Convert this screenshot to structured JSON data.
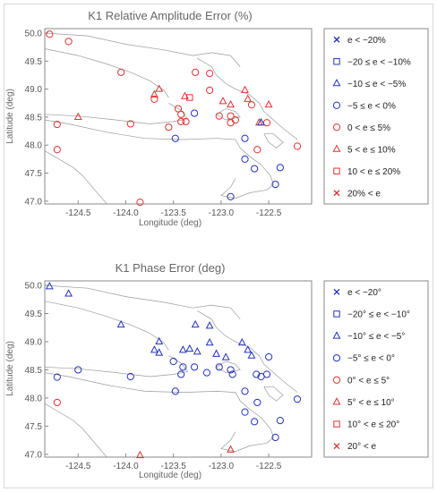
{
  "chart_data": [
    {
      "type": "scatter",
      "title": "K1 Relative Amplitude Error (%)",
      "xlabel": "Longitude (deg)",
      "ylabel": "Latitude (deg)",
      "xlim": [
        -124.85,
        -122.05
      ],
      "ylim": [
        46.95,
        50.08
      ],
      "xticks": [
        -124.5,
        -124.0,
        -123.5,
        -123.0,
        -122.5
      ],
      "yticks": [
        47.0,
        47.5,
        48.0,
        48.5,
        49.0,
        49.5,
        50.0
      ],
      "grid": false,
      "legend_position": "right",
      "legend": [
        {
          "label": "e < −20%",
          "marker": "x",
          "color": "#2233bb"
        },
        {
          "label": "−20 ≤ e < −10%",
          "marker": "square",
          "color": "#2233bb"
        },
        {
          "label": "−10 ≤ e < −5%",
          "marker": "triangle",
          "color": "#2233bb"
        },
        {
          "label": "−5 ≤ e < 0%",
          "marker": "circle",
          "color": "#2233bb"
        },
        {
          "label": "0 < e ≤ 5%",
          "marker": "circle",
          "color": "#dd3333"
        },
        {
          "label": "5 < e ≤ 10%",
          "marker": "triangle",
          "color": "#dd3333"
        },
        {
          "label": "10 < e ≤ 20%",
          "marker": "square",
          "color": "#dd3333"
        },
        {
          "label": "20% < e",
          "marker": "x",
          "color": "#dd3333"
        }
      ],
      "points": [
        {
          "x": -124.8,
          "y": 49.98,
          "m": "circle",
          "c": "red"
        },
        {
          "x": -124.6,
          "y": 49.85,
          "m": "circle",
          "c": "red"
        },
        {
          "x": -124.05,
          "y": 49.3,
          "m": "circle",
          "c": "red"
        },
        {
          "x": -123.27,
          "y": 49.3,
          "m": "circle",
          "c": "red"
        },
        {
          "x": -123.12,
          "y": 49.28,
          "m": "circle",
          "c": "red"
        },
        {
          "x": -123.65,
          "y": 49.0,
          "m": "triangle",
          "c": "red"
        },
        {
          "x": -123.7,
          "y": 48.9,
          "m": "triangle",
          "c": "red"
        },
        {
          "x": -123.7,
          "y": 48.82,
          "m": "circle",
          "c": "red"
        },
        {
          "x": -123.38,
          "y": 48.87,
          "m": "triangle",
          "c": "red"
        },
        {
          "x": -123.33,
          "y": 48.85,
          "m": "square",
          "c": "red"
        },
        {
          "x": -123.12,
          "y": 48.98,
          "m": "circle",
          "c": "red"
        },
        {
          "x": -122.98,
          "y": 48.78,
          "m": "triangle",
          "c": "red"
        },
        {
          "x": -122.9,
          "y": 48.72,
          "m": "triangle",
          "c": "red"
        },
        {
          "x": -122.75,
          "y": 48.98,
          "m": "triangle",
          "c": "red"
        },
        {
          "x": -122.72,
          "y": 48.82,
          "m": "triangle",
          "c": "red"
        },
        {
          "x": -122.68,
          "y": 48.72,
          "m": "circle",
          "c": "red"
        },
        {
          "x": -122.5,
          "y": 48.72,
          "m": "triangle",
          "c": "red"
        },
        {
          "x": -124.5,
          "y": 48.5,
          "m": "triangle",
          "c": "red"
        },
        {
          "x": -124.72,
          "y": 48.37,
          "m": "circle",
          "c": "red"
        },
        {
          "x": -123.95,
          "y": 48.38,
          "m": "circle",
          "c": "red"
        },
        {
          "x": -123.55,
          "y": 48.32,
          "m": "circle",
          "c": "red"
        },
        {
          "x": -123.42,
          "y": 48.42,
          "m": "circle",
          "c": "red"
        },
        {
          "x": -123.37,
          "y": 48.42,
          "m": "circle",
          "c": "red"
        },
        {
          "x": -123.42,
          "y": 48.55,
          "m": "circle",
          "c": "red"
        },
        {
          "x": -123.45,
          "y": 48.65,
          "m": "circle",
          "c": "red"
        },
        {
          "x": -123.02,
          "y": 48.52,
          "m": "circle",
          "c": "red"
        },
        {
          "x": -122.9,
          "y": 48.52,
          "m": "circle",
          "c": "red"
        },
        {
          "x": -122.85,
          "y": 48.45,
          "m": "circle",
          "c": "red"
        },
        {
          "x": -122.9,
          "y": 48.4,
          "m": "circle",
          "c": "red"
        },
        {
          "x": -122.6,
          "y": 48.4,
          "m": "triangle",
          "c": "red"
        },
        {
          "x": -122.52,
          "y": 48.4,
          "m": "circle",
          "c": "red"
        },
        {
          "x": -122.62,
          "y": 47.92,
          "m": "circle",
          "c": "red"
        },
        {
          "x": -122.2,
          "y": 47.98,
          "m": "circle",
          "c": "red"
        },
        {
          "x": -124.72,
          "y": 47.92,
          "m": "circle",
          "c": "red"
        },
        {
          "x": -123.85,
          "y": 46.98,
          "m": "circle",
          "c": "red"
        },
        {
          "x": -123.28,
          "y": 48.57,
          "m": "circle",
          "c": "blue"
        },
        {
          "x": -123.48,
          "y": 48.12,
          "m": "circle",
          "c": "blue"
        },
        {
          "x": -122.75,
          "y": 48.12,
          "m": "circle",
          "c": "blue"
        },
        {
          "x": -122.58,
          "y": 48.4,
          "m": "triangle",
          "c": "blue"
        },
        {
          "x": -122.75,
          "y": 47.75,
          "m": "circle",
          "c": "blue"
        },
        {
          "x": -122.65,
          "y": 47.58,
          "m": "circle",
          "c": "blue"
        },
        {
          "x": -122.38,
          "y": 47.6,
          "m": "circle",
          "c": "blue"
        },
        {
          "x": -122.43,
          "y": 47.3,
          "m": "circle",
          "c": "blue"
        },
        {
          "x": -122.9,
          "y": 47.08,
          "m": "circle",
          "c": "blue"
        }
      ]
    },
    {
      "type": "scatter",
      "title": "K1 Phase Error (deg)",
      "xlabel": "Longitude (deg)",
      "ylabel": "Latitude (deg)",
      "xlim": [
        -124.85,
        -122.05
      ],
      "ylim": [
        46.95,
        50.08
      ],
      "xticks": [
        -124.5,
        -124.0,
        -123.5,
        -123.0,
        -122.5
      ],
      "yticks": [
        47.0,
        47.5,
        48.0,
        48.5,
        49.0,
        49.5,
        50.0
      ],
      "grid": false,
      "legend_position": "right",
      "legend": [
        {
          "label": "e < −20°",
          "marker": "x",
          "color": "#2233bb"
        },
        {
          "label": "−20° ≤ e < −10°",
          "marker": "square",
          "color": "#2233bb"
        },
        {
          "label": "−10° ≤ e < −5°",
          "marker": "triangle",
          "color": "#2233bb"
        },
        {
          "label": "−5° ≤ e < 0°",
          "marker": "circle",
          "color": "#2233bb"
        },
        {
          "label": "0° < e ≤ 5°",
          "marker": "circle",
          "color": "#dd3333"
        },
        {
          "label": "5° < e ≤ 10°",
          "marker": "triangle",
          "color": "#dd3333"
        },
        {
          "label": "10° < e ≤ 20°",
          "marker": "square",
          "color": "#dd3333"
        },
        {
          "label": "20° < e",
          "marker": "x",
          "color": "#dd3333"
        }
      ],
      "points": [
        {
          "x": -124.8,
          "y": 49.98,
          "m": "triangle",
          "c": "blue"
        },
        {
          "x": -124.6,
          "y": 49.85,
          "m": "triangle",
          "c": "blue"
        },
        {
          "x": -124.05,
          "y": 49.3,
          "m": "triangle",
          "c": "blue"
        },
        {
          "x": -123.27,
          "y": 49.3,
          "m": "triangle",
          "c": "blue"
        },
        {
          "x": -123.12,
          "y": 49.28,
          "m": "triangle",
          "c": "blue"
        },
        {
          "x": -123.65,
          "y": 49.0,
          "m": "triangle",
          "c": "blue"
        },
        {
          "x": -123.7,
          "y": 48.85,
          "m": "triangle",
          "c": "blue"
        },
        {
          "x": -123.65,
          "y": 48.8,
          "m": "triangle",
          "c": "blue"
        },
        {
          "x": -123.4,
          "y": 48.85,
          "m": "triangle",
          "c": "blue"
        },
        {
          "x": -123.33,
          "y": 48.87,
          "m": "triangle",
          "c": "blue"
        },
        {
          "x": -123.25,
          "y": 48.82,
          "m": "triangle",
          "c": "blue"
        },
        {
          "x": -123.12,
          "y": 48.98,
          "m": "triangle",
          "c": "blue"
        },
        {
          "x": -123.05,
          "y": 48.78,
          "m": "triangle",
          "c": "blue"
        },
        {
          "x": -122.95,
          "y": 48.72,
          "m": "triangle",
          "c": "blue"
        },
        {
          "x": -122.78,
          "y": 48.98,
          "m": "triangle",
          "c": "blue"
        },
        {
          "x": -122.72,
          "y": 48.85,
          "m": "triangle",
          "c": "blue"
        },
        {
          "x": -122.68,
          "y": 48.75,
          "m": "triangle",
          "c": "blue"
        },
        {
          "x": -122.5,
          "y": 48.73,
          "m": "circle",
          "c": "blue"
        },
        {
          "x": -124.5,
          "y": 48.5,
          "m": "circle",
          "c": "blue"
        },
        {
          "x": -124.72,
          "y": 48.37,
          "m": "circle",
          "c": "blue"
        },
        {
          "x": -123.95,
          "y": 48.38,
          "m": "circle",
          "c": "blue"
        },
        {
          "x": -123.48,
          "y": 48.12,
          "m": "circle",
          "c": "blue"
        },
        {
          "x": -123.42,
          "y": 48.42,
          "m": "circle",
          "c": "blue"
        },
        {
          "x": -123.4,
          "y": 48.55,
          "m": "circle",
          "c": "blue"
        },
        {
          "x": -123.5,
          "y": 48.65,
          "m": "circle",
          "c": "blue"
        },
        {
          "x": -123.28,
          "y": 48.55,
          "m": "circle",
          "c": "blue"
        },
        {
          "x": -123.15,
          "y": 48.45,
          "m": "circle",
          "c": "blue"
        },
        {
          "x": -123.02,
          "y": 48.55,
          "m": "circle",
          "c": "blue"
        },
        {
          "x": -122.9,
          "y": 48.5,
          "m": "circle",
          "c": "blue"
        },
        {
          "x": -122.88,
          "y": 48.42,
          "m": "circle",
          "c": "blue"
        },
        {
          "x": -122.63,
          "y": 48.42,
          "m": "circle",
          "c": "blue"
        },
        {
          "x": -122.58,
          "y": 48.38,
          "m": "circle",
          "c": "blue"
        },
        {
          "x": -122.52,
          "y": 48.42,
          "m": "circle",
          "c": "blue"
        },
        {
          "x": -122.75,
          "y": 48.12,
          "m": "circle",
          "c": "blue"
        },
        {
          "x": -122.62,
          "y": 47.92,
          "m": "circle",
          "c": "blue"
        },
        {
          "x": -122.2,
          "y": 47.98,
          "m": "circle",
          "c": "blue"
        },
        {
          "x": -122.75,
          "y": 47.75,
          "m": "circle",
          "c": "blue"
        },
        {
          "x": -122.65,
          "y": 47.58,
          "m": "circle",
          "c": "blue"
        },
        {
          "x": -122.38,
          "y": 47.6,
          "m": "circle",
          "c": "blue"
        },
        {
          "x": -122.43,
          "y": 47.3,
          "m": "circle",
          "c": "blue"
        },
        {
          "x": -124.72,
          "y": 47.92,
          "m": "circle",
          "c": "red"
        },
        {
          "x": -123.85,
          "y": 46.98,
          "m": "triangle",
          "c": "red"
        },
        {
          "x": -122.9,
          "y": 47.08,
          "m": "triangle",
          "c": "red"
        }
      ]
    }
  ]
}
